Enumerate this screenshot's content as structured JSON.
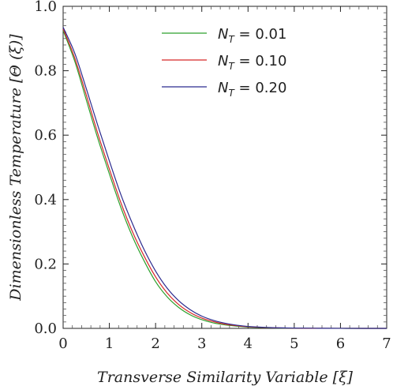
{
  "chart_data": {
    "type": "line",
    "xlabel": "Transverse Similarity Variable [ξ]",
    "ylabel": "Dimensionless Temperature [Θ (ξ)]",
    "xlim": [
      0,
      7
    ],
    "ylim": [
      0,
      1.0
    ],
    "xticks": [
      "0",
      "1",
      "2",
      "3",
      "4",
      "5",
      "6",
      "7"
    ],
    "yticks": [
      "0.0",
      "0.2",
      "0.4",
      "0.6",
      "0.8",
      "1.0"
    ],
    "grid": false,
    "legend_position": "top-right",
    "x": [
      0,
      0.25,
      0.5,
      0.75,
      1.0,
      1.25,
      1.5,
      1.75,
      2.0,
      2.25,
      2.5,
      2.75,
      3.0,
      3.25,
      3.5,
      3.75,
      4.0,
      4.5,
      5.0,
      5.5,
      6.0,
      6.5,
      7.0
    ],
    "series": [
      {
        "name": "N_T = 0.01",
        "legend_var": "N",
        "legend_sub": "T",
        "legend_value": " = 0.01",
        "color": "#2ca02c",
        "values": [
          0.925,
          0.83,
          0.71,
          0.59,
          0.48,
          0.375,
          0.285,
          0.21,
          0.145,
          0.098,
          0.065,
          0.042,
          0.027,
          0.017,
          0.011,
          0.007,
          0.004,
          0.0015,
          0.0005,
          0.0002,
          0.0001,
          0.0,
          0.0
        ]
      },
      {
        "name": "N_T = 0.10",
        "legend_var": "N",
        "legend_sub": "T",
        "legend_value": " = 0.10",
        "color": "#d62728",
        "values": [
          0.93,
          0.84,
          0.725,
          0.605,
          0.495,
          0.39,
          0.3,
          0.225,
          0.16,
          0.11,
          0.074,
          0.049,
          0.032,
          0.021,
          0.013,
          0.0085,
          0.005,
          0.002,
          0.0007,
          0.0003,
          0.0001,
          0.0,
          0.0
        ]
      },
      {
        "name": "N_T = 0.20",
        "legend_var": "N",
        "legend_sub": "T",
        "legend_value": " = 0.20",
        "color": "#2b2b8f",
        "values": [
          0.935,
          0.855,
          0.745,
          0.63,
          0.52,
          0.415,
          0.325,
          0.245,
          0.178,
          0.125,
          0.086,
          0.058,
          0.038,
          0.025,
          0.016,
          0.01,
          0.006,
          0.0025,
          0.001,
          0.0004,
          0.0001,
          0.0,
          0.0
        ]
      }
    ]
  }
}
